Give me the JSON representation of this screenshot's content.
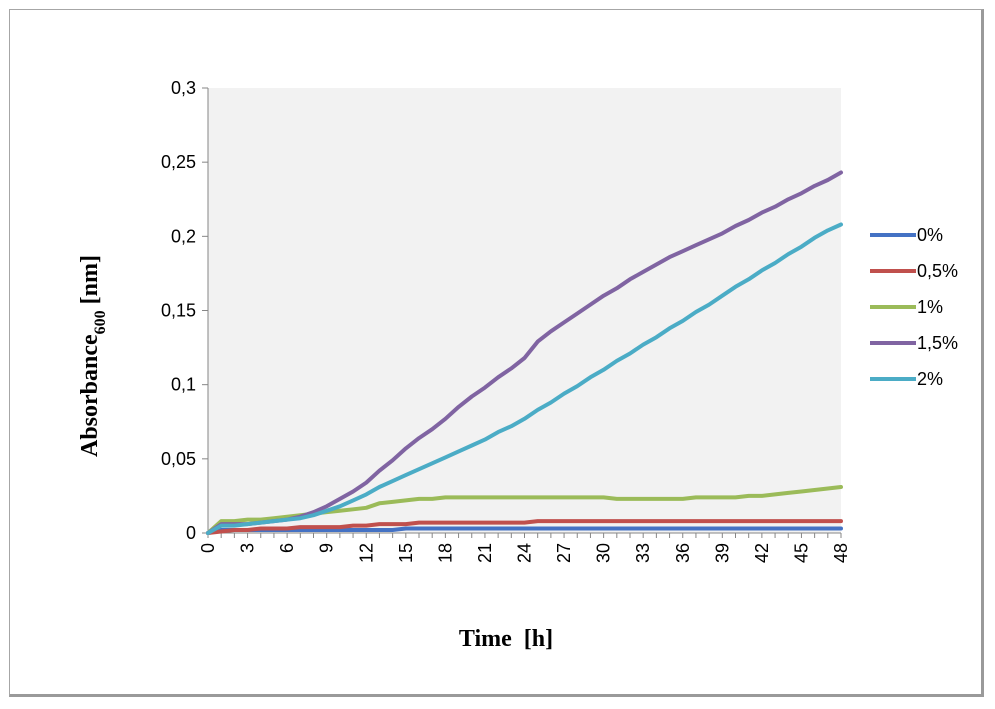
{
  "chart_data": {
    "type": "line",
    "title": "",
    "xlabel": "Time  [h]",
    "ylabel": {
      "main": "Absorbance",
      "sub": "600",
      "tail": " [nm]"
    },
    "xlim": [
      0,
      48
    ],
    "ylim": [
      0,
      0.3
    ],
    "y_ticks": [
      {
        "value": 0,
        "label": "0"
      },
      {
        "value": 0.05,
        "label": "0,05"
      },
      {
        "value": 0.1,
        "label": "0,1"
      },
      {
        "value": 0.15,
        "label": "0,15"
      },
      {
        "value": 0.2,
        "label": "0,2"
      },
      {
        "value": 0.25,
        "label": "0,25"
      },
      {
        "value": 0.3,
        "label": "0,3"
      }
    ],
    "x_tick_labels": [
      "0",
      "3",
      "6",
      "9",
      "12",
      "15",
      "18",
      "21",
      "24",
      "27",
      "30",
      "33",
      "36",
      "39",
      "42",
      "45",
      "48"
    ],
    "x_tick_values": [
      0,
      3,
      6,
      9,
      12,
      15,
      18,
      21,
      24,
      27,
      30,
      33,
      36,
      39,
      42,
      45,
      48
    ],
    "grid": false,
    "plot_background": "#f2f2f2",
    "legend_position": "right",
    "x": [
      0,
      1,
      2,
      3,
      4,
      5,
      6,
      7,
      8,
      9,
      10,
      11,
      12,
      13,
      14,
      15,
      16,
      17,
      18,
      19,
      20,
      21,
      22,
      23,
      24,
      25,
      26,
      27,
      28,
      29,
      30,
      31,
      32,
      33,
      34,
      35,
      36,
      37,
      38,
      39,
      40,
      41,
      42,
      43,
      44,
      45,
      46,
      47,
      48
    ],
    "series": [
      {
        "name": "0%",
        "color": "#4472c4",
        "values": [
          0,
          0.002,
          0.002,
          0.002,
          0.002,
          0.002,
          0.002,
          0.002,
          0.002,
          0.002,
          0.002,
          0.002,
          0.002,
          0.002,
          0.002,
          0.003,
          0.003,
          0.003,
          0.003,
          0.003,
          0.003,
          0.003,
          0.003,
          0.003,
          0.003,
          0.003,
          0.003,
          0.003,
          0.003,
          0.003,
          0.003,
          0.003,
          0.003,
          0.003,
          0.003,
          0.003,
          0.003,
          0.003,
          0.003,
          0.003,
          0.003,
          0.003,
          0.003,
          0.003,
          0.003,
          0.003,
          0.003,
          0.003,
          0.003
        ]
      },
      {
        "name": "0,5%",
        "color": "#c0504d",
        "values": [
          0,
          0.001,
          0.002,
          0.002,
          0.003,
          0.003,
          0.003,
          0.004,
          0.004,
          0.004,
          0.004,
          0.005,
          0.005,
          0.006,
          0.006,
          0.006,
          0.007,
          0.007,
          0.007,
          0.007,
          0.007,
          0.007,
          0.007,
          0.007,
          0.007,
          0.008,
          0.008,
          0.008,
          0.008,
          0.008,
          0.008,
          0.008,
          0.008,
          0.008,
          0.008,
          0.008,
          0.008,
          0.008,
          0.008,
          0.008,
          0.008,
          0.008,
          0.008,
          0.008,
          0.008,
          0.008,
          0.008,
          0.008,
          0.008
        ]
      },
      {
        "name": "1%",
        "color": "#9bbb59",
        "values": [
          0,
          0.008,
          0.008,
          0.009,
          0.009,
          0.01,
          0.011,
          0.012,
          0.013,
          0.014,
          0.015,
          0.016,
          0.017,
          0.02,
          0.021,
          0.022,
          0.023,
          0.023,
          0.024,
          0.024,
          0.024,
          0.024,
          0.024,
          0.024,
          0.024,
          0.024,
          0.024,
          0.024,
          0.024,
          0.024,
          0.024,
          0.023,
          0.023,
          0.023,
          0.023,
          0.023,
          0.023,
          0.024,
          0.024,
          0.024,
          0.024,
          0.025,
          0.025,
          0.026,
          0.027,
          0.028,
          0.029,
          0.03,
          0.031
        ]
      },
      {
        "name": "1,5%",
        "color": "#8064a2",
        "values": [
          0,
          0.006,
          0.006,
          0.006,
          0.007,
          0.008,
          0.009,
          0.011,
          0.014,
          0.018,
          0.023,
          0.028,
          0.034,
          0.042,
          0.049,
          0.057,
          0.064,
          0.07,
          0.077,
          0.085,
          0.092,
          0.098,
          0.105,
          0.111,
          0.118,
          0.129,
          0.136,
          0.142,
          0.148,
          0.154,
          0.16,
          0.165,
          0.171,
          0.176,
          0.181,
          0.186,
          0.19,
          0.194,
          0.198,
          0.202,
          0.207,
          0.211,
          0.216,
          0.22,
          0.225,
          0.229,
          0.234,
          0.238,
          0.243
        ]
      },
      {
        "name": "2%",
        "color": "#4bacc6",
        "values": [
          0,
          0.005,
          0.005,
          0.006,
          0.007,
          0.008,
          0.009,
          0.01,
          0.012,
          0.015,
          0.018,
          0.022,
          0.026,
          0.031,
          0.035,
          0.039,
          0.043,
          0.047,
          0.051,
          0.055,
          0.059,
          0.063,
          0.068,
          0.072,
          0.077,
          0.083,
          0.088,
          0.094,
          0.099,
          0.105,
          0.11,
          0.116,
          0.121,
          0.127,
          0.132,
          0.138,
          0.143,
          0.149,
          0.154,
          0.16,
          0.166,
          0.171,
          0.177,
          0.182,
          0.188,
          0.193,
          0.199,
          0.204,
          0.208
        ]
      }
    ]
  }
}
